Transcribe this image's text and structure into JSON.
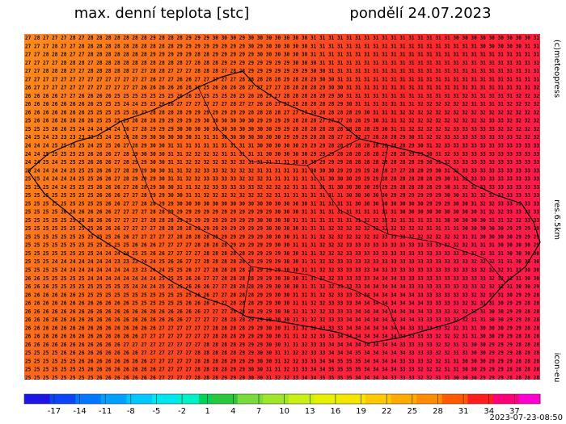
{
  "header": {
    "title": "max. denní teplota [stc]",
    "date": "pondělí 24.07.2023"
  },
  "side_labels": {
    "copyright": "(c)meteopress",
    "resolution": "res.6.5km",
    "model": "icon-eu"
  },
  "timestamp": "2023-07-23-08:50",
  "map": {
    "rows": [
      "27 28 27 27 27 28 27 28 28 28 28 28 28 28 29 28 28 28 29 29 29 30 30 30 29 30 30 30 30 30 30 30 31 31 31 31 31 31 31 31 31 31 31 31 31 31 31 31 30 30 30 30 30 30 30 30 30 31",
      "27 27 27 28 27 27 28 28 28 28 28 28 28 28 28 28 28 29 29 29 29 29 29 29 29 30 29 30 30 30 30 30 31 31 31 31 31 31 31 31 31 31 31 31 31 31 31 31 31 31 31 30 30 30 30 30 31 31",
      "27 27 28 28 28 27 27 28 28 28 28 28 28 28 29 29 29 29 29 28 28 29 29 29 29 29 30 30 30 30 30 30 31 31 31 31 31 31 31 31 31 31 31 31 31 31 31 31 31 31 31 31 31 31 31 31 31 31",
      "27 27 27 27 28 28 28 27 28 28 28 28 28 28 28 28 28 28 27 28 28 28 29 29 29 29 29 29 29 29 30 30 30 31 31 31 31 31 31 31 31 31 31 31 31 31 31 31 31 31 31 31 31 31 31 31 31 31",
      "27 27 28 28 28 27 27 28 28 28 28 28 27 27 28 28 27 27 27 28 28 28 27 28 28 29 29 29 29 29 29 29 30 30 31 31 31 31 31 31 31 31 31 31 31 31 31 31 31 31 31 31 31 31 31 31 31 31",
      "27 27 27 27 27 27 27 27 27 27 27 27 27 27 26 27 27 26 26 27 27 27 27 27 28 28 28 28 28 29 28 28 29 30 30 31 31 31 31 31 31 31 31 31 31 31 31 31 31 31 31 31 31 31 31 31 31 31",
      "26 27 27 27 27 27 27 27 27 27 27 27 27 26 26 26 26 26 26 26 25 26 26 26 26 27 27 27 27 28 28 28 28 29 30 30 31 31 31 31 31 31 31 31 31 31 31 31 31 31 31 31 31 31 31 31 31 32",
      "26 26 26 26 27 27 26 26 26 26 25 25 25 25 25 25 25 26 26 25 25 25 25 26 25 26 26 27 27 28 28 28 28 28 29 30 31 31 31 31 31 31 31 31 31 31 31 31 31 32 31 31 31 31 31 32 32 32",
      "26 26 26 26 26 26 26 26 25 25 25 24 24 25 25 26 26 27 27 27 27 27 27 28 27 27 26 26 27 27 28 28 28 28 28 29 30 31 31 31 31 31 31 31 32 32 32 32 32 32 31 31 31 31 32 32 32 32",
      "26 26 26 26 26 26 26 25 25 25 25 25 26 27 28 28 28 28 29 29 29 29 29 29 29 28 28 28 28 27 27 27 28 28 28 28 28 29 30 31 31 31 32 32 32 32 32 32 32 32 32 32 32 32 32 32 32 32",
      "25 26 26 26 26 26 26 26 25 25 25 25 26 28 28 29 29 29 29 29 30 30 30 30 30 30 29 29 29 29 28 28 28 27 27 27 28 28 29 30 31 31 32 32 32 32 32 32 32 32 32 32 33 33 32 32 32 32",
      "25 25 25 26 26 25 24 24 24 24 24 26 27 28 29 29 29 30 30 30 30 30 30 30 30 30 30 30 29 29 28 28 28 28 28 28 28 28 28 29 30 31 31 32 32 32 32 32 33 33 33 33 33 32 32 32 32 32",
      "24 25 24 23 23 23 23 23 23 24 25 26 28 29 30 30 30 30 30 31 31 31 30 30 30 30 30 30 30 29 29 29 28 28 28 27 27 27 27 28 28 28 29 30 31 32 32 33 33 33 33 33 33 33 33 32 32 32",
      "24 24 24 25 25 25 25 24 25 25 26 27 28 29 30 30 31 31 31 31 31 31 31 31 31 31 30 30 30 30 30 29 29 29 28 28 27 28 28 28 28 28 28 29 30 31 32 33 33 33 33 33 33 33 33 33 33 33",
      "24 24 25 25 25 25 25 26 26 26 27 28 29 30 30 30 31 31 32 32 32 32 31 31 31 31 31 30 30 30 30 30 29 29 29 28 28 28 28 28 27 28 28 29 29 30 31 32 33 33 33 33 33 33 33 33 33 33",
      "24 24 25 24 25 25 25 26 26 26 27 28 29 29 30 30 31 31 32 32 32 32 32 32 32 31 31 31 31 31 30 30 30 29 29 29 28 28 28 28 28 28 28 28 29 30 31 32 33 33 33 33 33 33 33 33 33 33",
      "25 24 24 24 24 25 25 25 26 26 27 28 29 29 30 30 31 31 32 32 33 33 32 32 32 32 31 31 31 31 31 31 30 30 30 29 29 29 29 28 28 27 27 28 28 29 30 31 32 33 33 33 33 33 33 33 33 33",
      "25 25 24 24 24 24 25 25 26 26 27 28 29 29 29 30 31 31 32 32 33 33 33 33 32 32 32 31 31 31 31 31 31 31 30 30 30 29 29 29 28 28 28 28 28 28 29 30 31 32 33 33 33 33 33 33 33 33",
      "25 25 25 24 24 25 25 25 26 26 26 27 28 28 29 30 30 31 31 32 32 33 33 33 33 33 32 32 32 32 31 31 31 31 31 30 30 30 30 29 29 29 28 28 28 28 29 30 31 32 32 33 33 33 33 33 33 33",
      "25 25 25 25 25 25 25 25 26 26 26 27 27 28 29 29 30 30 31 31 32 32 32 32 32 32 32 32 31 31 31 31 31 31 31 31 30 30 30 30 30 29 29 29 29 29 29 30 30 31 32 32 32 33 33 33 33 33",
      "25 25 25 25 25 25 25 25 25 26 26 27 27 28 28 29 29 30 30 30 30 30 30 30 30 30 30 30 30 30 30 30 31 31 31 31 31 30 30 30 30 30 30 30 30 29 29 29 30 30 31 32 32 33 33 33 33 33",
      "25 25 25 25 26 26 26 26 26 26 27 27 27 27 28 28 29 29 29 29 29 29 29 29 29 29 29 29 30 30 30 31 31 31 31 31 31 31 31 31 31 31 30 30 30 30 30 30 30 30 30 31 32 32 33 33 33 33",
      "25 25 25 25 25 25 26 26 26 26 27 27 27 27 28 28 28 29 29 29 29 29 29 29 29 29 30 30 30 30 31 31 31 31 31 31 31 31 32 32 32 32 31 31 31 31 31 30 30 30 30 30 31 31 32 32 33 33",
      "25 25 25 25 25 25 25 25 26 26 26 27 27 27 27 28 28 28 28 29 29 29 29 29 29 29 29 30 30 30 30 31 31 31 32 32 32 32 32 32 32 32 32 32 32 31 31 31 31 30 30 30 30 30 29 29 29 29",
      "25 25 25 25 25 25 25 25 25 25 26 26 27 27 27 27 27 28 28 28 28 29 29 29 29 29 29 30 30 30 31 31 31 32 32 32 32 32 32 32 33 33 33 32 32 32 32 32 32 31 31 30 30 30 30 29 29 29",
      "25 25 25 25 25 25 25 25 25 25 25 25 26 26 26 27 27 27 27 28 28 28 28 29 29 29 29 29 30 30 31 31 31 32 32 32 33 33 33 33 33 33 33 33 33 33 33 32 32 32 31 31 31 30 30 30 30 29",
      "25 25 25 25 25 25 25 25 24 24 24 24 25 25 26 26 27 27 27 27 28 28 28 28 28 29 29 29 29 30 30 31 31 32 32 32 33 33 33 33 33 33 33 33 33 33 33 33 33 32 32 32 31 31 30 30 30 30",
      "25 25 25 24 24 24 24 24 24 24 23 23 23 24 24 25 26 26 27 27 28 28 28 28 28 28 29 29 29 30 30 31 31 32 32 33 33 33 33 33 33 33 33 33 33 33 33 33 33 33 32 32 32 31 31 30 30 30",
      "25 25 25 25 24 24 24 24 24 24 24 24 23 23 24 24 25 25 26 27 27 28 28 28 28 28 29 29 29 30 30 31 31 32 32 33 33 33 33 34 33 33 33 33 33 33 33 33 33 33 33 32 32 32 31 31 30 30",
      "26 26 25 25 25 25 25 24 24 24 24 24 24 24 24 25 25 25 26 26 27 27 28 28 28 28 29 29 30 30 30 31 31 32 32 33 33 33 33 34 34 34 33 33 33 33 33 33 33 33 33 33 32 32 31 31 30 30",
      "26 26 26 25 25 25 25 25 25 25 25 25 24 24 24 25 25 25 26 26 26 27 27 28 28 28 29 29 30 30 30 31 31 32 32 33 33 33 34 34 34 34 34 33 33 33 33 33 33 33 33 32 32 31 31 30 30 29",
      "26 26 26 26 26 26 25 25 25 25 25 25 25 25 25 25 25 25 25 26 26 27 27 28 28 28 29 29 30 30 31 31 31 32 32 33 33 33 34 34 34 34 34 34 33 33 33 33 33 33 32 32 31 31 30 29 29 28",
      "26 26 26 26 26 26 26 26 26 26 26 26 25 25 25 25 25 25 26 26 26 27 27 28 28 28 29 29 30 30 31 31 32 32 33 33 33 34 34 34 34 34 34 34 34 33 33 33 33 32 32 31 31 30 29 29 28 28",
      "26 26 26 26 26 26 26 26 26 26 26 26 26 26 26 26 26 26 26 26 27 27 27 28 28 28 29 29 30 30 31 31 32 32 33 33 33 34 34 34 34 34 34 34 34 33 33 33 32 32 31 31 30 30 29 29 28 28",
      "26 26 26 26 26 26 26 26 26 26 26 26 26 26 26 26 26 26 27 27 27 27 28 28 28 29 29 29 30 30 31 31 32 32 33 33 34 34 34 34 34 34 34 34 33 33 33 33 32 32 31 31 30 30 29 29 28 28",
      "26 26 26 26 26 26 26 26 26 26 26 26 26 26 26 27 27 27 27 27 27 28 28 28 28 29 29 30 30 31 31 32 32 33 33 33 34 34 34 34 34 34 34 33 33 33 33 32 32 31 31 30 30 30 29 29 28 28",
      "26 26 26 26 26 26 26 26 26 26 26 26 26 27 27 27 27 27 27 27 27 28 28 28 29 29 29 30 30 31 31 32 32 33 33 34 34 34 34 34 34 34 34 33 33 33 32 32 32 31 31 30 30 29 29 28 28 28",
      "26 26 26 26 26 26 26 26 26 26 26 27 27 27 27 27 27 27 27 27 28 28 28 28 29 29 29 30 30 31 31 32 33 33 34 34 34 34 34 34 34 34 33 33 33 33 32 32 31 31 30 30 29 29 29 28 28 28",
      "25 25 25 25 26 26 26 26 26 26 26 26 26 27 27 27 27 27 27 28 28 28 28 28 29 29 30 30 31 31 32 32 33 33 34 34 34 35 34 34 34 34 34 33 33 33 32 32 31 31 30 30 29 29 29 28 28 28",
      "25 25 25 25 25 25 26 26 26 26 26 26 26 26 27 27 27 27 27 28 28 28 28 29 29 29 30 30 31 32 32 33 33 34 34 35 35 35 34 34 34 34 33 33 33 32 32 31 31 30 30 30 29 29 29 28 28 28",
      "25 25 25 25 25 25 25 26 26 26 26 26 26 26 26 27 27 27 27 28 28 28 28 29 29 30 30 31 31 32 33 33 34 34 35 35 35 35 34 34 34 34 33 33 32 32 32 31 31 30 30 29 29 29 28 28 28 28",
      "25 25 25 25 25 25 25 25 26 26 26 26 26 26 26 27 27 27 27 28 28 28 29 29 29 30 30 31 32 32 33 34 34 35 35 35 35 34 34 34 34 33 33 33 32 32 31 31 30 30 30 29 29 29 28 28 28 28"
    ]
  },
  "colorbar": {
    "lim": [
      -20.5,
      40
    ],
    "ticks": [
      -17,
      -14,
      -11,
      -8,
      -5,
      -2,
      1,
      4,
      7,
      10,
      13,
      16,
      19,
      22,
      25,
      28,
      31,
      34,
      37
    ],
    "stops": [
      {
        "value": -20.5,
        "color": "#1e14e6"
      },
      {
        "value": -17.5,
        "color": "#0a46f5"
      },
      {
        "value": -14.5,
        "color": "#0078ff"
      },
      {
        "value": -11.5,
        "color": "#00a0ff"
      },
      {
        "value": -8.5,
        "color": "#00c8ff"
      },
      {
        "value": -5.5,
        "color": "#00e6f0"
      },
      {
        "value": -2.5,
        "color": "#00f0c8"
      },
      {
        "value": 0,
        "color": "#00d25a"
      },
      {
        "value": 1.5,
        "color": "#28c83c"
      },
      {
        "value": 4.5,
        "color": "#78dc3c"
      },
      {
        "value": 7.5,
        "color": "#a0e628"
      },
      {
        "value": 10.5,
        "color": "#c8f014"
      },
      {
        "value": 13.5,
        "color": "#e6f000"
      },
      {
        "value": 16.5,
        "color": "#f5e600"
      },
      {
        "value": 19.5,
        "color": "#ffc800"
      },
      {
        "value": 22.5,
        "color": "#ffaa00"
      },
      {
        "value": 25.5,
        "color": "#ff8c00"
      },
      {
        "value": 28.5,
        "color": "#ff5a00"
      },
      {
        "value": 31.5,
        "color": "#ff1e1e"
      },
      {
        "value": 34.5,
        "color": "#ff0078"
      },
      {
        "value": 37.5,
        "color": "#ff00d2"
      }
    ]
  }
}
